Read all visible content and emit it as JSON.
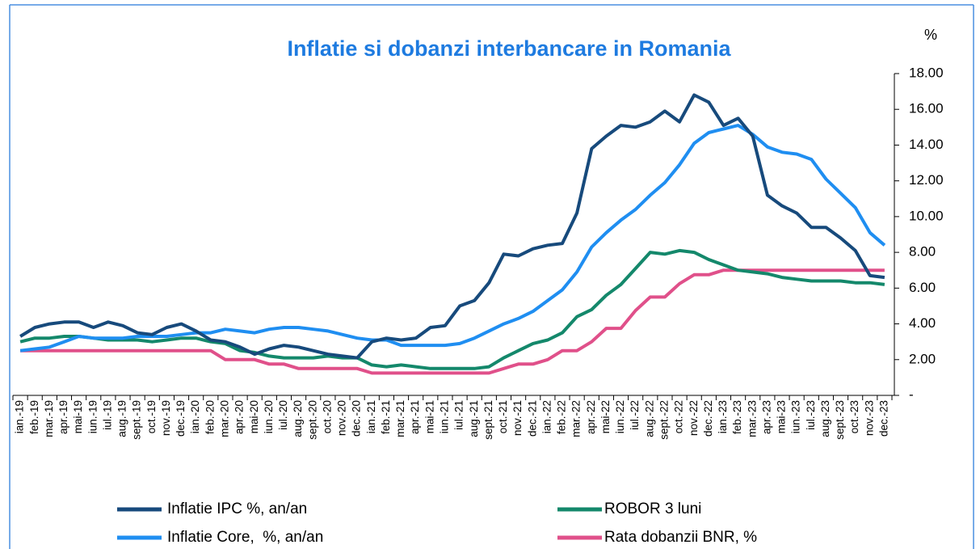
{
  "chart_data": {
    "type": "line",
    "title": "Inflatie si dobanzi interbancare in Romania",
    "y_axis_label": "%",
    "categories": [
      "ian.-19",
      "feb.-19",
      "mar.-19",
      "apr.-19",
      "mai-19",
      "iun.-19",
      "iul.-19",
      "aug.-19",
      "sept.-19",
      "oct.-19",
      "nov.-19",
      "dec.-19",
      "ian.-20",
      "feb.-20",
      "mar.-20",
      "apr.-20",
      "mai-20",
      "iun.-20",
      "iul.-20",
      "aug.-20",
      "sept.-20",
      "oct.-20",
      "nov.-20",
      "dec.-20",
      "ian.-21",
      "feb.-21",
      "mar.-21",
      "apr.-21",
      "mai-21",
      "iun.-21",
      "iul.-21",
      "aug.-21",
      "sept.-21",
      "oct.-21",
      "nov.-21",
      "dec.-21",
      "ian.-22",
      "feb.-22",
      "mar.-22",
      "apr.-22",
      "mai-22",
      "iun.-22",
      "iul.-22",
      "aug.-22",
      "sept.-22",
      "oct.-22",
      "nov.-22",
      "dec.-22",
      "ian.-23",
      "feb.-23",
      "mar.-23",
      "apr.-23",
      "mai-23",
      "iun.-23",
      "iul.-23",
      "aug.-23",
      "sept.-23",
      "oct.-23",
      "nov.-23",
      "dec.-23"
    ],
    "series": [
      {
        "name": "Inflatie IPC %, an/an",
        "color": "#174a7c",
        "values": [
          3.3,
          3.8,
          4.0,
          4.1,
          4.1,
          3.8,
          4.1,
          3.9,
          3.5,
          3.4,
          3.8,
          4.0,
          3.6,
          3.1,
          3.0,
          2.7,
          2.3,
          2.6,
          2.8,
          2.7,
          2.5,
          2.3,
          2.2,
          2.1,
          3.0,
          3.2,
          3.1,
          3.2,
          3.8,
          3.9,
          5.0,
          5.3,
          6.3,
          7.9,
          7.8,
          8.2,
          8.4,
          8.5,
          10.2,
          13.8,
          14.5,
          15.1,
          15.0,
          15.3,
          15.9,
          15.3,
          16.8,
          16.4,
          15.1,
          15.5,
          14.5,
          11.2,
          10.6,
          10.2,
          9.4,
          9.4,
          8.8,
          8.1,
          6.7,
          6.6
        ]
      },
      {
        "name": "ROBOR 3 luni",
        "color": "#14886b",
        "values": [
          3.0,
          3.2,
          3.2,
          3.3,
          3.3,
          3.2,
          3.1,
          3.1,
          3.1,
          3.0,
          3.1,
          3.2,
          3.2,
          3.0,
          2.9,
          2.5,
          2.4,
          2.2,
          2.1,
          2.1,
          2.1,
          2.2,
          2.1,
          2.1,
          1.7,
          1.6,
          1.7,
          1.6,
          1.5,
          1.5,
          1.5,
          1.5,
          1.6,
          2.1,
          2.5,
          2.9,
          3.1,
          3.5,
          4.4,
          4.8,
          5.6,
          6.2,
          7.1,
          8.0,
          7.9,
          8.1,
          8.0,
          7.6,
          7.3,
          7.0,
          6.9,
          6.8,
          6.6,
          6.5,
          6.4,
          6.4,
          6.4,
          6.3,
          6.3,
          6.2
        ]
      },
      {
        "name": "Inflatie Core,  %, an/an",
        "color": "#1f8ef1",
        "values": [
          2.5,
          2.6,
          2.7,
          3.0,
          3.3,
          3.2,
          3.2,
          3.2,
          3.3,
          3.3,
          3.3,
          3.4,
          3.5,
          3.5,
          3.7,
          3.6,
          3.5,
          3.7,
          3.8,
          3.8,
          3.7,
          3.6,
          3.4,
          3.2,
          3.1,
          3.1,
          2.8,
          2.8,
          2.8,
          2.8,
          2.9,
          3.2,
          3.6,
          4.0,
          4.3,
          4.7,
          5.3,
          5.9,
          6.9,
          8.3,
          9.1,
          9.8,
          10.4,
          11.2,
          11.9,
          12.9,
          14.1,
          14.7,
          14.9,
          15.1,
          14.6,
          13.9,
          13.6,
          13.5,
          13.2,
          12.1,
          11.3,
          10.5,
          9.1,
          8.4
        ]
      },
      {
        "name": "Rata dobanzii BNR, %",
        "color": "#e0508a",
        "values": [
          2.5,
          2.5,
          2.5,
          2.5,
          2.5,
          2.5,
          2.5,
          2.5,
          2.5,
          2.5,
          2.5,
          2.5,
          2.5,
          2.5,
          2.0,
          2.0,
          2.0,
          1.75,
          1.75,
          1.5,
          1.5,
          1.5,
          1.5,
          1.5,
          1.25,
          1.25,
          1.25,
          1.25,
          1.25,
          1.25,
          1.25,
          1.25,
          1.25,
          1.5,
          1.75,
          1.75,
          2.0,
          2.5,
          2.5,
          3.0,
          3.75,
          3.75,
          4.75,
          5.5,
          5.5,
          6.25,
          6.75,
          6.75,
          7.0,
          7.0,
          7.0,
          7.0,
          7.0,
          7.0,
          7.0,
          7.0,
          7.0,
          7.0,
          7.0,
          7.0
        ]
      }
    ],
    "ylim": [
      0,
      18
    ],
    "yticks": [
      {
        "value": 0,
        "label": "-"
      },
      {
        "value": 2,
        "label": "2.00"
      },
      {
        "value": 4,
        "label": "4.00"
      },
      {
        "value": 6,
        "label": "6.00"
      },
      {
        "value": 8,
        "label": "8.00"
      },
      {
        "value": 10,
        "label": "10.00"
      },
      {
        "value": 12,
        "label": "12.00"
      },
      {
        "value": 14,
        "label": "14.00"
      },
      {
        "value": 16,
        "label": "16.00"
      },
      {
        "value": 18,
        "label": "18.00"
      }
    ],
    "y_axis_side": "right",
    "grid": false,
    "legend_position": "bottom"
  }
}
